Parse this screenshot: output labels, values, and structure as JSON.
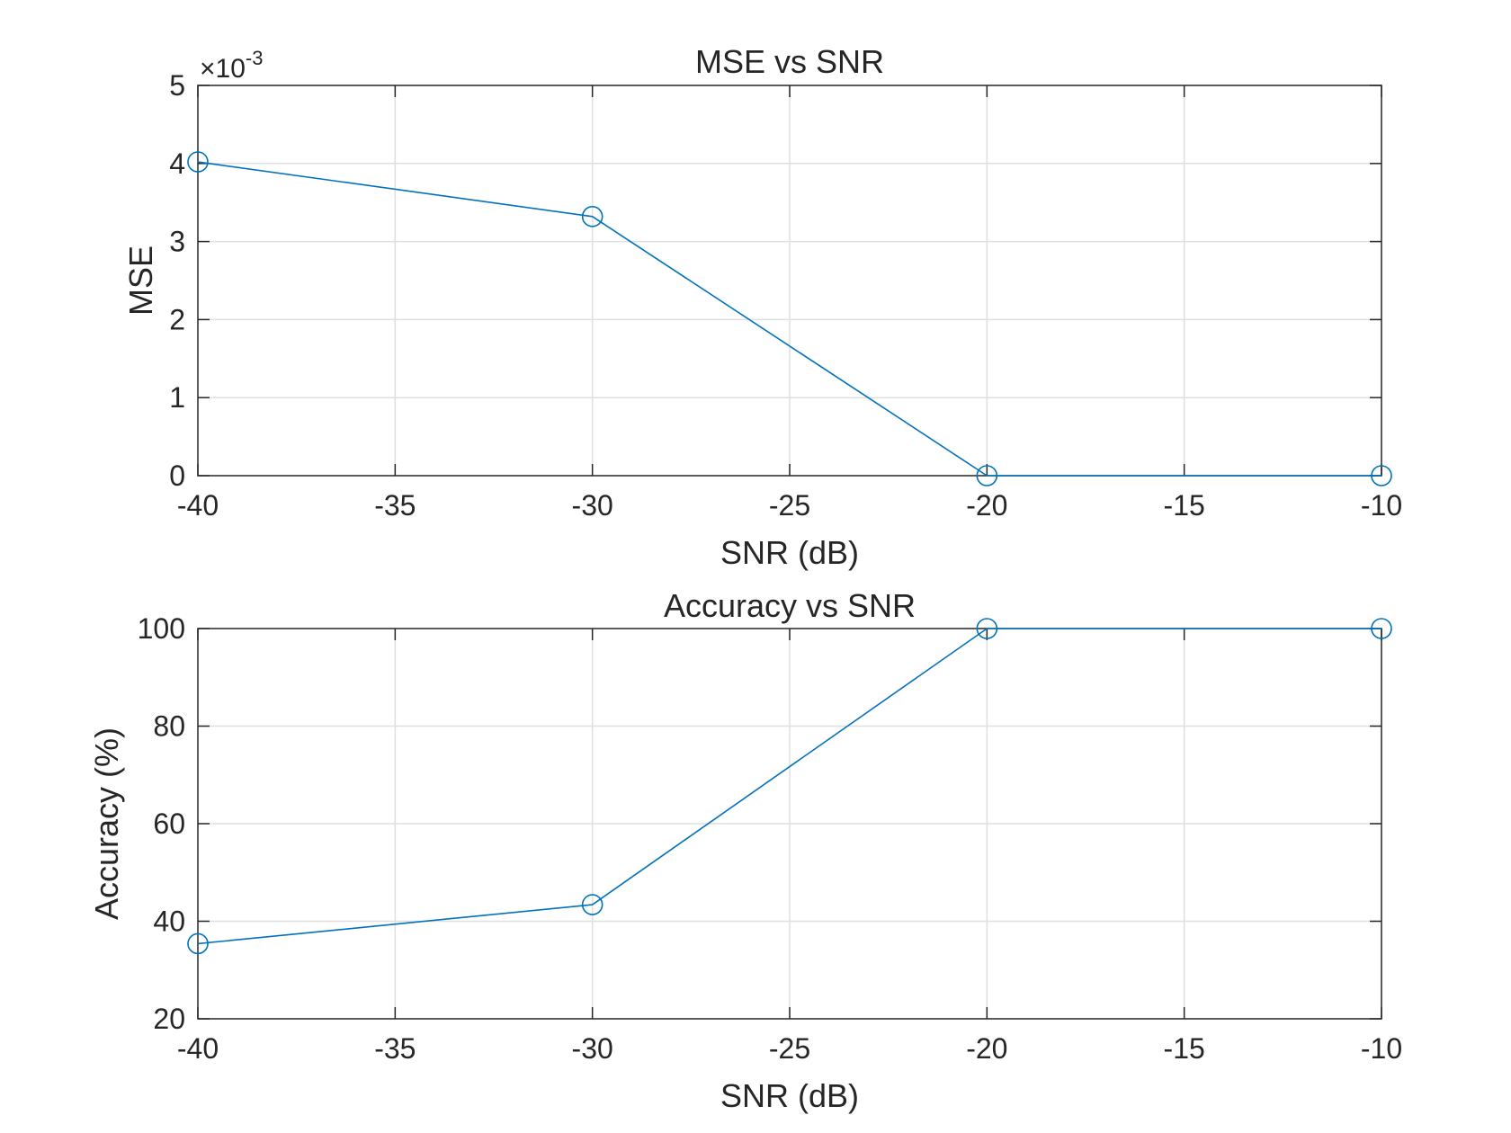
{
  "chart_data": [
    {
      "type": "line",
      "title": "MSE vs SNR",
      "xlabel": "SNR (dB)",
      "ylabel": "MSE",
      "xlim": [
        -40,
        -10
      ],
      "ylim": [
        0,
        5
      ],
      "xticks": [
        -40,
        -35,
        -30,
        -25,
        -20,
        -15,
        -10
      ],
      "yticks": [
        0,
        1,
        2,
        3,
        4,
        5
      ],
      "y_exponent_label": "×10",
      "y_exponent_power": "-3",
      "grid": true,
      "marker": "circle",
      "color": "#0072BD",
      "series": [
        {
          "x": [
            -40,
            -30,
            -20,
            -10
          ],
          "y": [
            4.02,
            3.32,
            0.0,
            0.0
          ]
        }
      ]
    },
    {
      "type": "line",
      "title": "Accuracy vs SNR",
      "xlabel": "SNR (dB)",
      "ylabel": "Accuracy (%)",
      "xlim": [
        -40,
        -10
      ],
      "ylim": [
        20,
        100
      ],
      "xticks": [
        -40,
        -35,
        -30,
        -25,
        -20,
        -15,
        -10
      ],
      "yticks": [
        20,
        40,
        60,
        80,
        100
      ],
      "grid": true,
      "marker": "circle",
      "color": "#0072BD",
      "series": [
        {
          "x": [
            -40,
            -30,
            -20,
            -10
          ],
          "y": [
            35.4,
            43.4,
            100,
            100
          ]
        }
      ]
    }
  ]
}
